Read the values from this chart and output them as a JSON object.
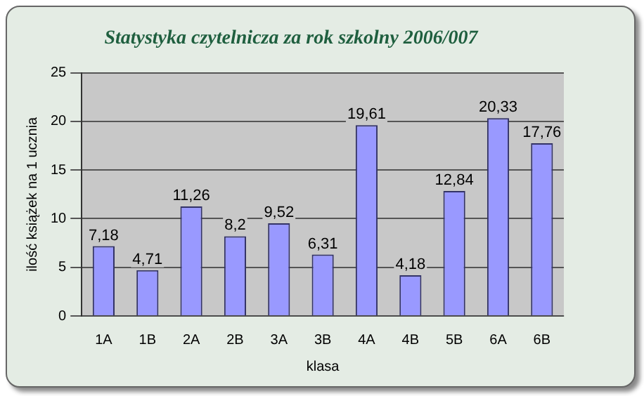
{
  "chart_data": {
    "type": "bar",
    "title": "Statystyka czytelnicza za rok szkolny 2006/007",
    "xlabel": "klasa",
    "ylabel": "ilość książek na 1 ucznia",
    "categories": [
      "1A",
      "1B",
      "2A",
      "2B",
      "3A",
      "3B",
      "4A",
      "4B",
      "5B",
      "6A",
      "6B"
    ],
    "values": [
      7.18,
      4.71,
      11.26,
      8.2,
      9.52,
      6.31,
      19.61,
      4.18,
      12.84,
      20.33,
      17.76
    ],
    "value_labels": [
      "7,18",
      "4,71",
      "11,26",
      "8,2",
      "9,52",
      "6,31",
      "19,61",
      "4,18",
      "12,84",
      "20,33",
      "17,76"
    ],
    "color": "#9999ff",
    "ylim": [
      0,
      25
    ],
    "yticks": [
      0,
      5,
      10,
      15,
      20,
      25
    ],
    "grid": "y",
    "legend": false
  }
}
